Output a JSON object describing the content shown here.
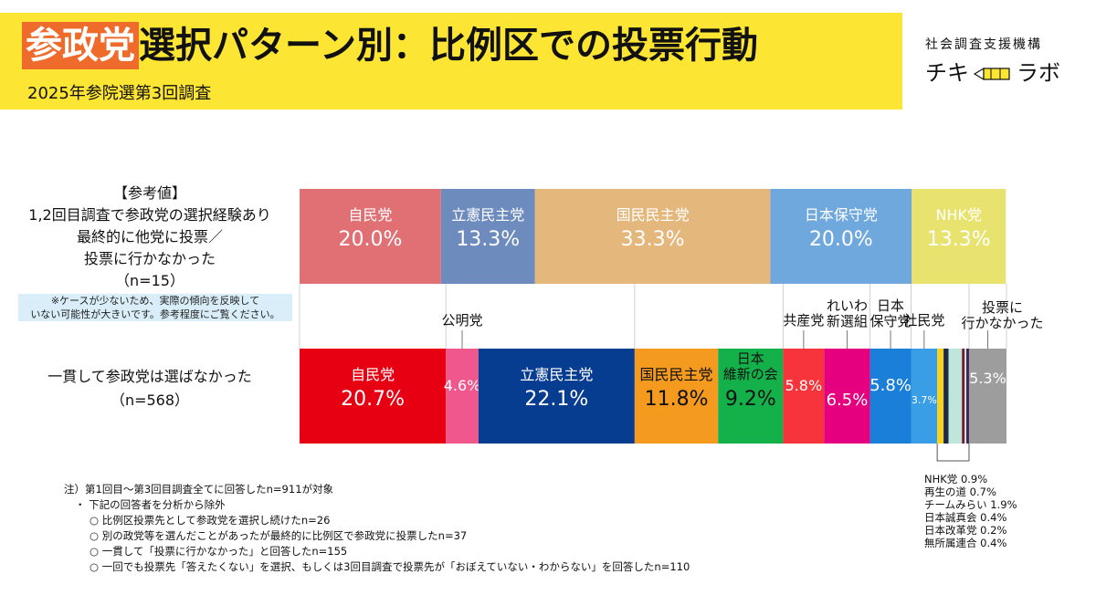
{
  "header": {
    "title_highlight": "参政党",
    "title_rest": "選択パターン別：比例区での投票行動",
    "subtitle": "2025年参院選第3回調査",
    "org_name": "社会調査支援機構",
    "brand_left": "チキ",
    "brand_right": "ラボ"
  },
  "reference": {
    "heading": "【参考値】",
    "line1": "1,2回目調査で参政党の選択経験あり",
    "line2": "最終的に他党に投票／",
    "line3": "投票に行かなかった",
    "n_label": "（n=15）",
    "caution1": "※ケースが少ないため、実際の傾向を反映して",
    "caution2": "いない可能性が大きいです。参考程度にご覧ください。"
  },
  "main_group": {
    "label": "一貫して参政党は選ばなかった",
    "n_label": "（n=568）"
  },
  "small_breakdown": [
    "NHK党 0.9%",
    "再生の道 0.7%",
    "チームみらい 1.9%",
    "日本誠真会 0.4%",
    "日本改革党 0.2%",
    "無所属連合 0.4%"
  ],
  "notes": {
    "n1": "注）第1回目～第3回目調査全てに回答したn=911が対象",
    "n2": "・ 下記の回答者を分析から除外",
    "n3": "○ 比例区投票先として参政党を選択し続けたn=26",
    "n4": "○ 別の政党等を選んだことがあったが最終的に比例区で参政党に投票したn=37",
    "n5": "○ 一貫して「投票に行かなかった」と回答したn=155",
    "n6": "○ 一回でも投票先「答えたくない」を選択、もしくは3回目調査で投票先が「おぼえていない・わからない」を回答したn=110"
  },
  "chart_data": {
    "type": "bar",
    "orientation": "horizontal",
    "stacked": "100%",
    "categories": [
      "【参考値】1,2回目調査で参政党の選択経験あり 最終的に他党に投票／投票に行かなかった（n=15）",
      "一貫して参政党は選ばなかった（n=568）"
    ],
    "rows": [
      {
        "segments": [
          {
            "name": "自民党",
            "value": 20.0,
            "label": "20.0%",
            "color": "#e07074",
            "text_color": "#ffffff"
          },
          {
            "name": "立憲民主党",
            "value": 13.3,
            "label": "13.3%",
            "color": "#6e8bbd",
            "text_color": "#ffffff"
          },
          {
            "name": "国民民主党",
            "value": 33.3,
            "label": "33.3%",
            "color": "#e4b77d",
            "text_color": "#ffffff"
          },
          {
            "name": "日本保守党",
            "value": 20.0,
            "label": "20.0%",
            "color": "#6ea8dc",
            "text_color": "#ffffff"
          },
          {
            "name": "NHK党",
            "value": 13.3,
            "label": "13.3%",
            "color": "#e8e26e",
            "text_color": "#ffffff"
          }
        ]
      },
      {
        "segments": [
          {
            "name": "自民党",
            "value": 20.7,
            "label": "20.7%",
            "color": "#e60012",
            "text_color": "#ffffff"
          },
          {
            "name": "公明党",
            "value": 4.6,
            "label": "4.6%",
            "color": "#f0578d",
            "text_color": "#ffffff"
          },
          {
            "name": "立憲民主党",
            "value": 22.1,
            "label": "22.1%",
            "color": "#063d91",
            "text_color": "#ffffff"
          },
          {
            "name": "国民民主党",
            "value": 11.8,
            "label": "11.8%",
            "color": "#f39a1f",
            "text_color": "#111111"
          },
          {
            "name": "日本維新の会",
            "value": 9.2,
            "label": "9.2%",
            "color": "#14b14b",
            "text_color": "#111111"
          },
          {
            "name": "共産党",
            "value": 5.8,
            "label": "5.8%",
            "color": "#f7343c",
            "text_color": "#ffffff"
          },
          {
            "name": "れいわ新選組",
            "value": 6.5,
            "label": "6.5%",
            "color": "#e4007f",
            "text_color": "#ffffff"
          },
          {
            "name": "日本保守党",
            "value": 5.8,
            "label": "5.8%",
            "color": "#1a7fd9",
            "text_color": "#ffffff"
          },
          {
            "name": "社民党",
            "value": 3.7,
            "label": "3.7%",
            "color": "#3a9ee6",
            "text_color": "#ffffff"
          },
          {
            "name": "NHK党",
            "value": 0.9,
            "label": "",
            "color": "#f6d21c",
            "text_color": "#111111"
          },
          {
            "name": "再生の道",
            "value": 0.7,
            "label": "",
            "color": "#1b2a4a",
            "text_color": "#ffffff"
          },
          {
            "name": "チームみらい",
            "value": 1.9,
            "label": "",
            "color": "#bfe6da",
            "text_color": "#111111"
          },
          {
            "name": "日本誠真会",
            "value": 0.4,
            "label": "",
            "color": "#6b1f2f",
            "text_color": "#ffffff"
          },
          {
            "name": "日本改革党",
            "value": 0.2,
            "label": "",
            "color": "#ffffff",
            "text_color": "#111111"
          },
          {
            "name": "無所属連合",
            "value": 0.4,
            "label": "",
            "color": "#3b2a57",
            "text_color": "#ffffff"
          },
          {
            "name": "投票に行かなかった",
            "value": 5.3,
            "label": "5.3%",
            "color": "#9d9d9d",
            "text_color": "#ffffff"
          }
        ]
      }
    ],
    "callouts": [
      {
        "party": "公明党",
        "text": "公明党"
      },
      {
        "party": "共産党",
        "text": "共産党"
      },
      {
        "party": "れいわ新選組",
        "text": "れいわ\n新選組"
      },
      {
        "party": "日本保守党",
        "text": "日本\n保守党"
      },
      {
        "party": "社民党",
        "text": "社民党"
      },
      {
        "party": "投票に行かなかった",
        "text": "投票に\n行かなかった"
      }
    ],
    "inner_labels": {
      "日本維新の会": "日本\n維新の会"
    },
    "xlim": [
      0,
      100
    ]
  }
}
